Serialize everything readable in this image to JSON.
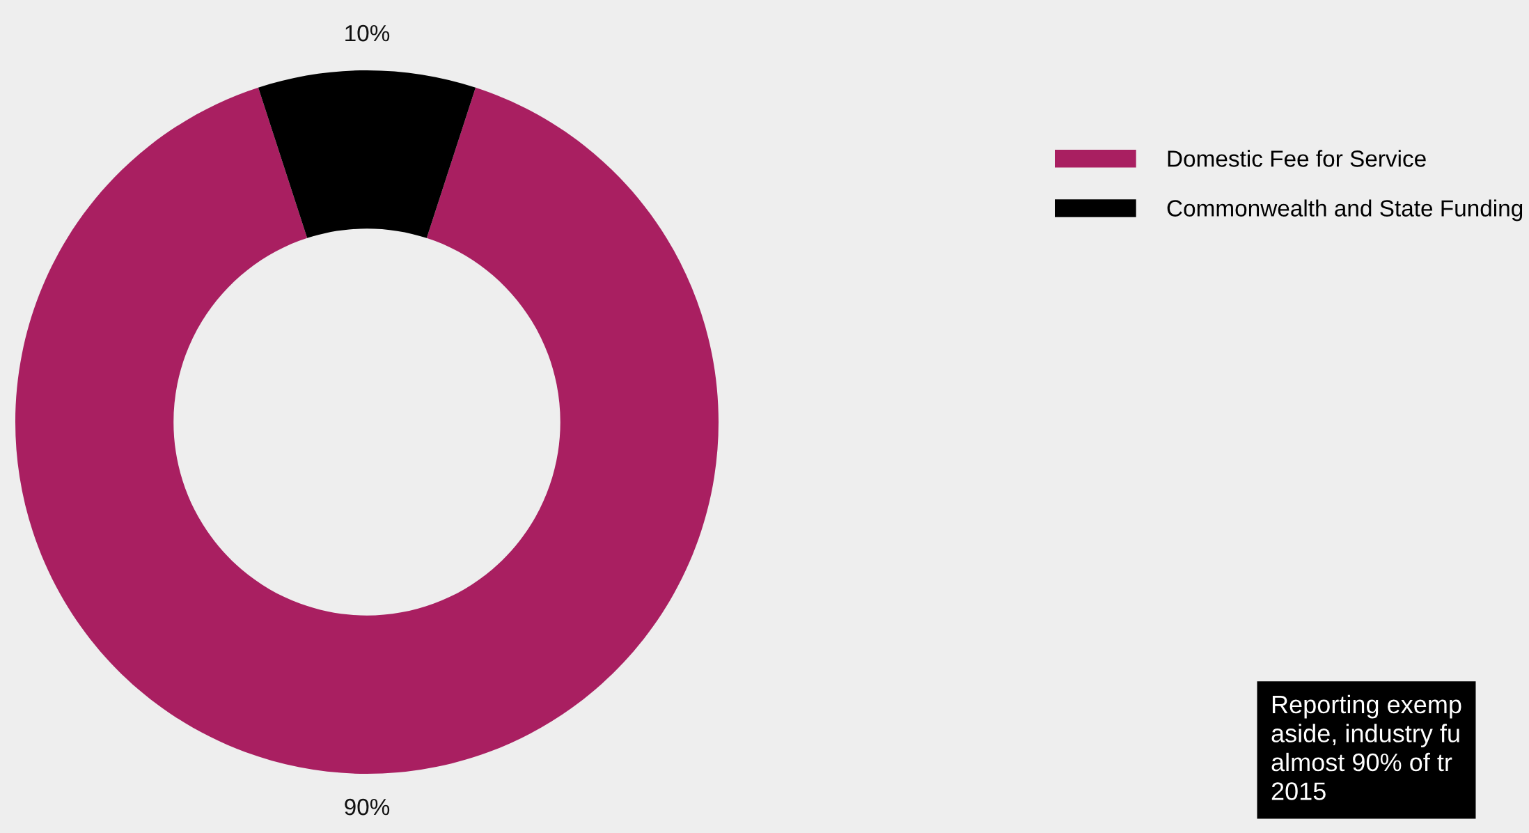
{
  "chart_data": {
    "type": "donut",
    "categories": [
      "Domestic Fee for Service",
      "Commonwealth and State Funding"
    ],
    "values": [
      90,
      10
    ],
    "colors": [
      "#a91f61",
      "#000000"
    ],
    "value_labels": [
      "90%",
      "10%"
    ],
    "legend": "top right",
    "annotations": [
      "Reporting exemp\naside, industry fu\nalmost 90% of tr\n2015"
    ]
  }
}
